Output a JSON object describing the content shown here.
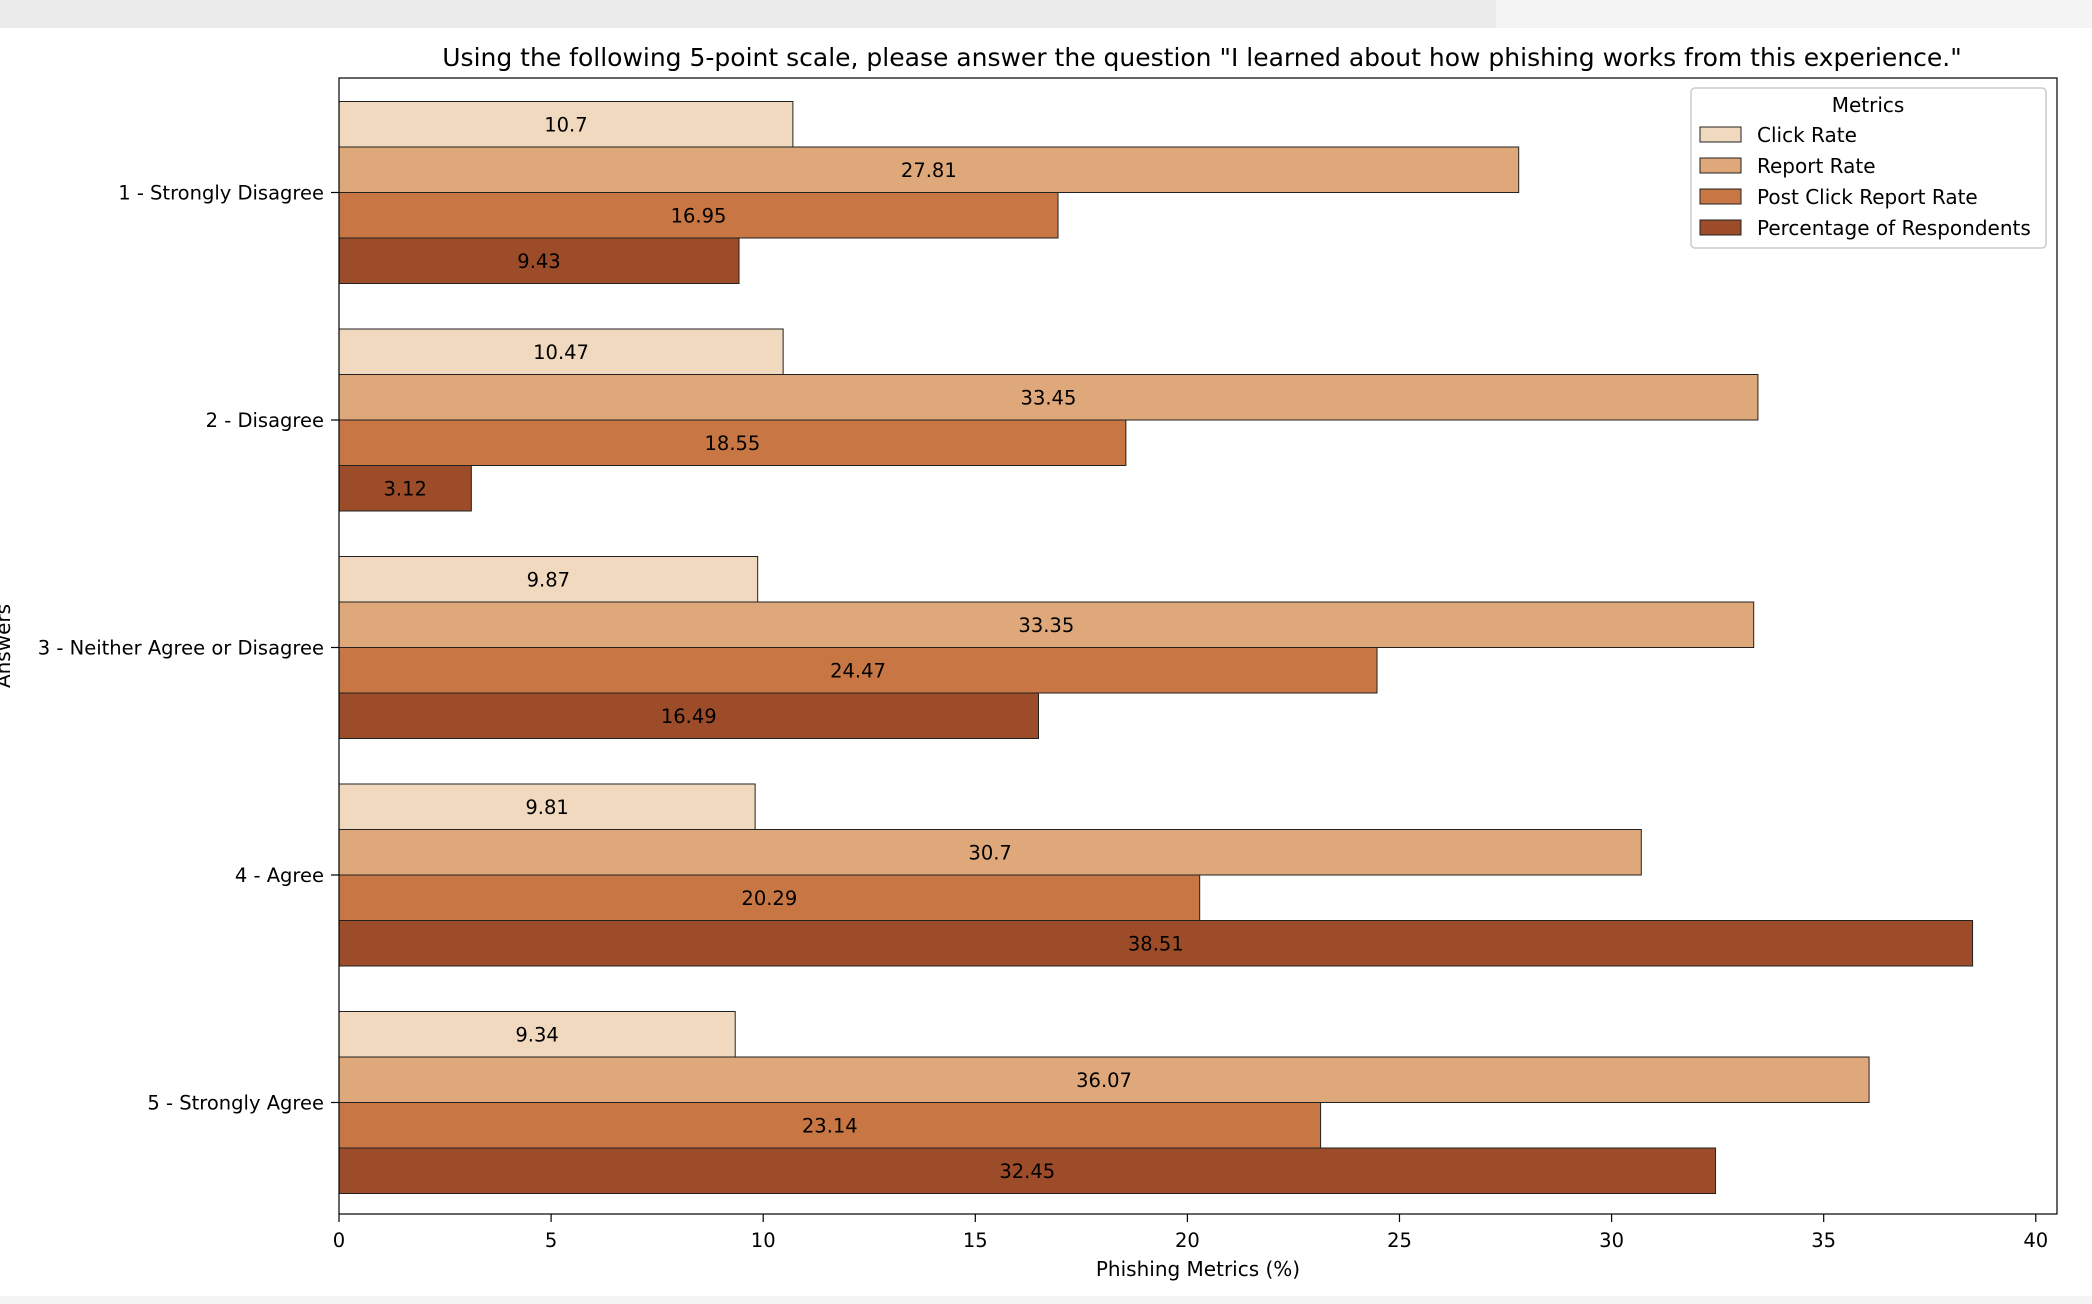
{
  "chart_data": {
    "type": "bar",
    "orientation": "horizontal",
    "title": "Using the following 5-point scale, please answer the question \"I learned about how phishing works from this experience.\"",
    "xlabel": "Phishing Metrics (%)",
    "ylabel": "Answers",
    "xlim": [
      0,
      40.5
    ],
    "xticks": [
      0,
      5,
      10,
      15,
      20,
      25,
      30,
      35,
      40
    ],
    "categories": [
      "1 - Strongly Disagree",
      "2 - Disagree",
      "3 - Neither Agree or Disagree",
      "4 - Agree",
      "5 - Strongly Agree"
    ],
    "legend": {
      "title": "Metrics",
      "placement": "top-right"
    },
    "grid": false,
    "series": [
      {
        "name": "Click Rate",
        "color": "#f0d9bf",
        "values": [
          10.7,
          10.47,
          9.87,
          9.81,
          9.34
        ]
      },
      {
        "name": "Report Rate",
        "color": "#dfa87b",
        "values": [
          27.81,
          33.45,
          33.35,
          30.7,
          36.07
        ]
      },
      {
        "name": "Post Click Report Rate",
        "color": "#c87744",
        "values": [
          16.95,
          18.55,
          24.47,
          20.29,
          23.14
        ]
      },
      {
        "name": "Percentage of Respondents",
        "color": "#9c4c28",
        "values": [
          9.43,
          3.12,
          16.49,
          38.51,
          32.45
        ]
      }
    ]
  }
}
